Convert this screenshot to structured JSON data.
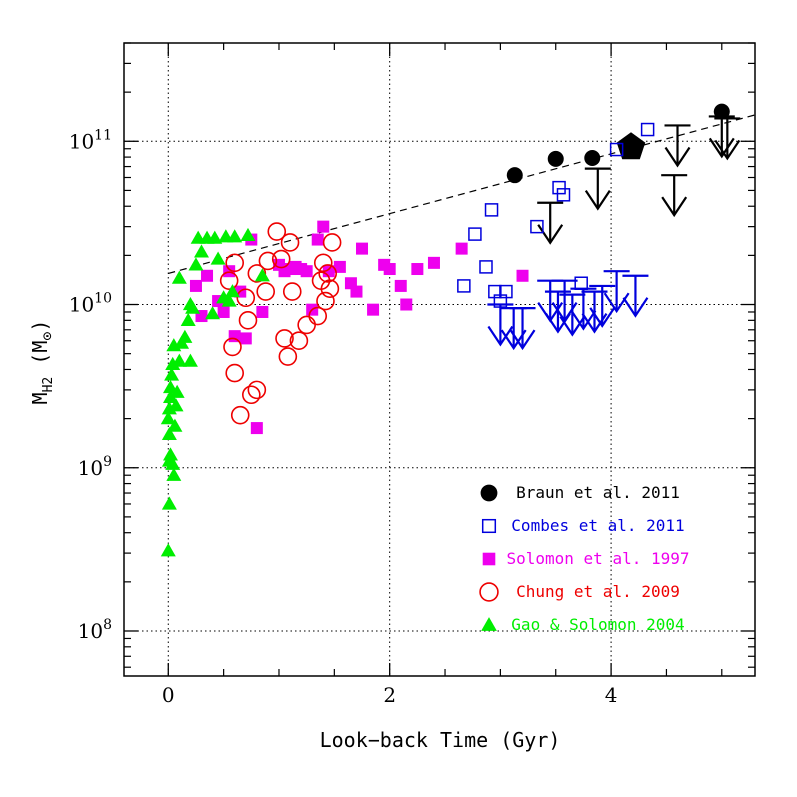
{
  "chart_data": {
    "type": "scatter",
    "title": "",
    "xlabel": "Look−back Time (Gyr)",
    "ylabel_main": "M",
    "ylabel_sub": "H2",
    "ylabel_unit_open": " (M",
    "ylabel_unit_symbol": "⊙",
    "ylabel_unit_close": ")",
    "xlim": [
      -0.4,
      5.3
    ],
    "ylim": [
      53000000.0,
      400000000000.0
    ],
    "y_scale": "log",
    "grid": true,
    "legend_position": "bottom-right",
    "x_ticks": [
      {
        "value": 0,
        "label": "0"
      },
      {
        "value": 2,
        "label": "2"
      },
      {
        "value": 4,
        "label": "4"
      }
    ],
    "y_ticks": [
      {
        "value": 100000000.0,
        "base": "10",
        "exp": "8"
      },
      {
        "value": 1000000000.0,
        "base": "10",
        "exp": "9"
      },
      {
        "value": 10000000000.0,
        "base": "10",
        "exp": "10"
      },
      {
        "value": 100000000000.0,
        "base": "10",
        "exp": "11"
      }
    ],
    "fit_line": {
      "style": "dashed",
      "color": "#000000",
      "points": [
        [
          0,
          15500000000.0
        ],
        [
          5.3,
          145000000000.0
        ]
      ]
    },
    "series": [
      {
        "name": "Braun et al. 2011",
        "color": "#000000",
        "marker": "filled-circle",
        "points": [
          [
            3.13,
            62000000000.0
          ],
          [
            3.5,
            78000000000.0
          ],
          [
            3.83,
            79000000000.0
          ],
          [
            5.0,
            152000000000.0
          ]
        ],
        "special_points": [
          [
            4.18,
            92000000000.0
          ]
        ],
        "upper_limits": [
          [
            3.45,
            42000000000.0
          ],
          [
            3.88,
            68000000000.0
          ],
          [
            4.6,
            125000000000.0
          ],
          [
            4.57,
            62000000000.0
          ],
          [
            5.0,
            142000000000.0
          ],
          [
            5.05,
            138000000000.0
          ]
        ]
      },
      {
        "name": "Combes et al. 2011",
        "color": "#0000dd",
        "marker": "open-square",
        "points": [
          [
            2.67,
            13000000000.0
          ],
          [
            2.77,
            27000000000.0
          ],
          [
            2.87,
            17000000000.0
          ],
          [
            2.92,
            38000000000.0
          ],
          [
            2.95,
            12000000000.0
          ],
          [
            3.0,
            10500000000.0
          ],
          [
            3.05,
            12000000000.0
          ],
          [
            3.33,
            30000000000.0
          ],
          [
            3.53,
            52000000000.0
          ],
          [
            3.57,
            47000000000.0
          ],
          [
            3.73,
            13500000000.0
          ],
          [
            4.05,
            89000000000.0
          ],
          [
            4.33,
            118000000000.0
          ]
        ],
        "upper_limits": [
          [
            3.0,
            10000000000.0
          ],
          [
            3.12,
            9500000000.0
          ],
          [
            3.2,
            9500000000.0
          ],
          [
            3.45,
            14000000000.0
          ],
          [
            3.52,
            12000000000.0
          ],
          [
            3.58,
            14000000000.0
          ],
          [
            3.65,
            11500000000.0
          ],
          [
            3.75,
            12500000000.0
          ],
          [
            3.85,
            12000000000.0
          ],
          [
            3.92,
            13000000000.0
          ],
          [
            4.05,
            16000000000.0
          ],
          [
            4.22,
            15000000000.0
          ]
        ]
      },
      {
        "name": "Solomon et al. 1997",
        "color": "#ee00ee",
        "marker": "filled-square",
        "points": [
          [
            0.25,
            13000000000.0
          ],
          [
            0.3,
            8500000000.0
          ],
          [
            0.35,
            15000000000.0
          ],
          [
            0.45,
            10500000000.0
          ],
          [
            0.5,
            9000000000.0
          ],
          [
            0.55,
            16000000000.0
          ],
          [
            0.6,
            6400000000.0
          ],
          [
            0.65,
            12000000000.0
          ],
          [
            0.7,
            6200000000.0
          ],
          [
            0.75,
            25000000000.0
          ],
          [
            0.8,
            1750000000.0
          ],
          [
            0.85,
            9000000000.0
          ],
          [
            1.0,
            17500000000.0
          ],
          [
            1.05,
            16000000000.0
          ],
          [
            1.1,
            16500000000.0
          ],
          [
            1.15,
            17000000000.0
          ],
          [
            1.2,
            16500000000.0
          ],
          [
            1.25,
            16000000000.0
          ],
          [
            1.3,
            9300000000.0
          ],
          [
            1.35,
            25000000000.0
          ],
          [
            1.4,
            30000000000.0
          ],
          [
            1.45,
            16000000000.0
          ],
          [
            1.55,
            17000000000.0
          ],
          [
            1.65,
            13500000000.0
          ],
          [
            1.7,
            12000000000.0
          ],
          [
            1.75,
            22000000000.0
          ],
          [
            1.85,
            9300000000.0
          ],
          [
            1.95,
            17500000000.0
          ],
          [
            2.0,
            16500000000.0
          ],
          [
            2.1,
            13000000000.0
          ],
          [
            2.15,
            10000000000.0
          ],
          [
            2.25,
            16500000000.0
          ],
          [
            2.4,
            18000000000.0
          ],
          [
            2.65,
            22000000000.0
          ],
          [
            3.2,
            15000000000.0
          ]
        ]
      },
      {
        "name": "Chung et al. 2009",
        "color": "#ee0000",
        "marker": "open-circle",
        "points": [
          [
            0.55,
            14000000000.0
          ],
          [
            0.58,
            5500000000.0
          ],
          [
            0.6,
            3800000000.0
          ],
          [
            0.6,
            18000000000.0
          ],
          [
            0.65,
            2100000000.0
          ],
          [
            0.7,
            11000000000.0
          ],
          [
            0.72,
            8000000000.0
          ],
          [
            0.75,
            2800000000.0
          ],
          [
            0.8,
            3000000000.0
          ],
          [
            0.8,
            15500000000.0
          ],
          [
            0.88,
            12000000000.0
          ],
          [
            0.9,
            18500000000.0
          ],
          [
            0.98,
            28000000000.0
          ],
          [
            1.02,
            19000000000.0
          ],
          [
            1.05,
            6200000000.0
          ],
          [
            1.08,
            4800000000.0
          ],
          [
            1.1,
            24000000000.0
          ],
          [
            1.12,
            12000000000.0
          ],
          [
            1.18,
            6000000000.0
          ],
          [
            1.25,
            7500000000.0
          ],
          [
            1.35,
            8500000000.0
          ],
          [
            1.38,
            14000000000.0
          ],
          [
            1.4,
            18000000000.0
          ],
          [
            1.42,
            10500000000.0
          ],
          [
            1.44,
            15500000000.0
          ],
          [
            1.46,
            12500000000.0
          ],
          [
            1.48,
            24000000000.0
          ]
        ]
      },
      {
        "name": "Gao & Solomon 2004",
        "color": "#00ee00",
        "marker": "filled-triangle",
        "points": [
          [
            0.0,
            310000000.0
          ],
          [
            0.01,
            600000000.0
          ],
          [
            0.01,
            1100000000.0
          ],
          [
            0.01,
            1600000000.0
          ],
          [
            0.0,
            2000000000.0
          ],
          [
            0.01,
            2300000000.0
          ],
          [
            0.02,
            2700000000.0
          ],
          [
            0.02,
            3100000000.0
          ],
          [
            0.03,
            3700000000.0
          ],
          [
            0.04,
            4300000000.0
          ],
          [
            0.05,
            5600000000.0
          ],
          [
            0.02,
            1200000000.0
          ],
          [
            0.04,
            1050000000.0
          ],
          [
            0.05,
            900000000.0
          ],
          [
            0.06,
            1800000000.0
          ],
          [
            0.07,
            2400000000.0
          ],
          [
            0.08,
            2900000000.0
          ],
          [
            0.1,
            4500000000.0
          ],
          [
            0.1,
            14500000000.0
          ],
          [
            0.12,
            5800000000.0
          ],
          [
            0.15,
            6300000000.0
          ],
          [
            0.18,
            8000000000.0
          ],
          [
            0.2,
            4500000000.0
          ],
          [
            0.2,
            10000000000.0
          ],
          [
            0.22,
            9500000000.0
          ],
          [
            0.25,
            17500000000.0
          ],
          [
            0.27,
            25500000000.0
          ],
          [
            0.3,
            21000000000.0
          ],
          [
            0.35,
            25500000000.0
          ],
          [
            0.4,
            8800000000.0
          ],
          [
            0.42,
            25500000000.0
          ],
          [
            0.45,
            19000000000.0
          ],
          [
            0.5,
            11000000000.0
          ],
          [
            0.52,
            26000000000.0
          ],
          [
            0.55,
            10500000000.0
          ],
          [
            0.58,
            12000000000.0
          ],
          [
            0.6,
            26000000000.0
          ],
          [
            0.72,
            26500000000.0
          ],
          [
            0.85,
            15000000000.0
          ]
        ]
      }
    ]
  }
}
